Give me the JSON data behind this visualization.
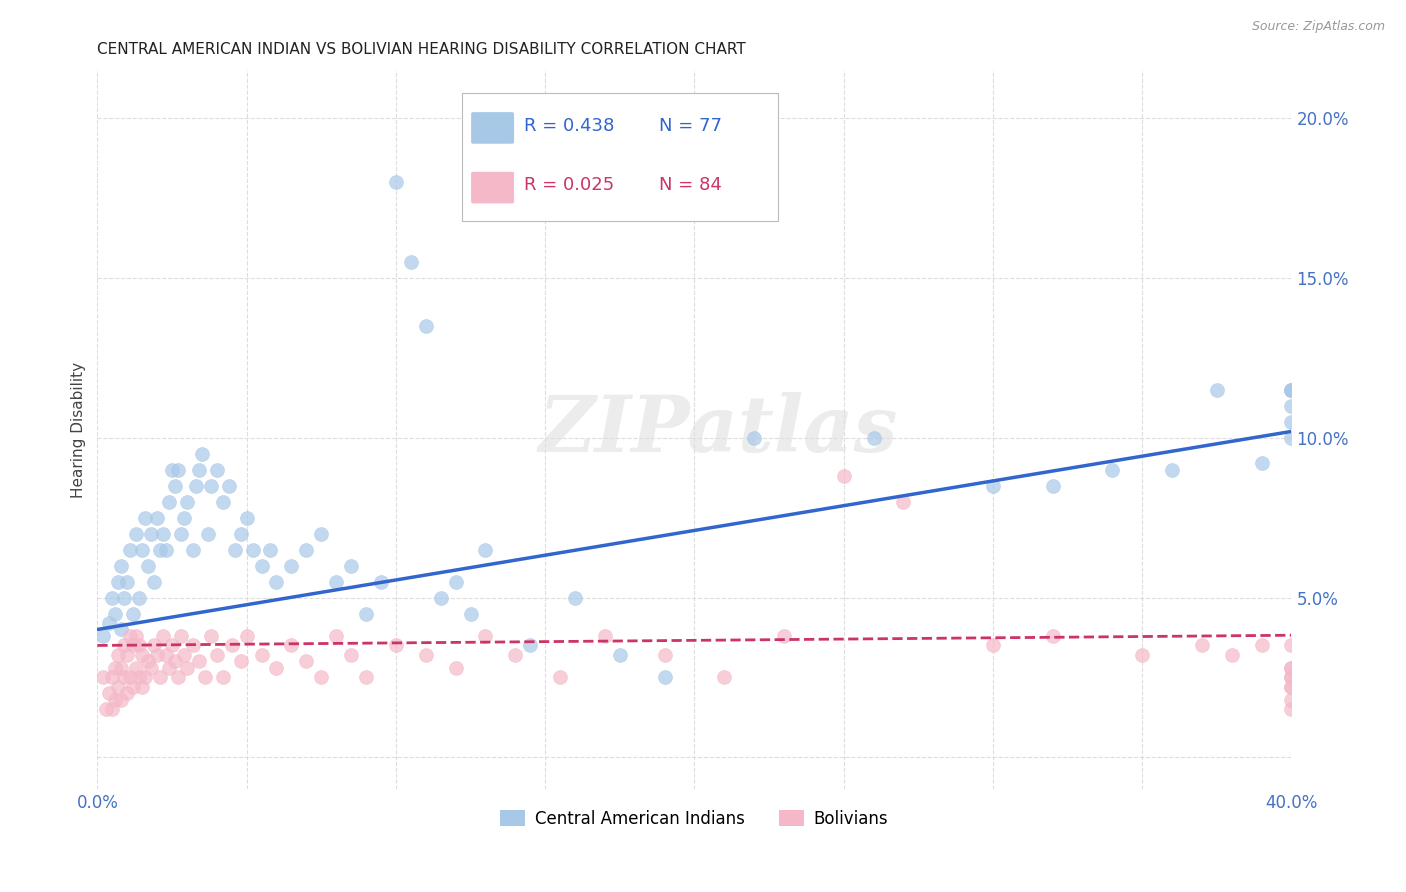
{
  "title": "CENTRAL AMERICAN INDIAN VS BOLIVIAN HEARING DISABILITY CORRELATION CHART",
  "source": "Source: ZipAtlas.com",
  "ylabel": "Hearing Disability",
  "xlim": [
    0.0,
    0.4
  ],
  "ylim": [
    -0.01,
    0.215
  ],
  "xticks": [
    0.0,
    0.05,
    0.1,
    0.15,
    0.2,
    0.25,
    0.3,
    0.35,
    0.4
  ],
  "xtick_labels": [
    "0.0%",
    "",
    "",
    "",
    "",
    "",
    "",
    "",
    "40.0%"
  ],
  "yticks": [
    0.0,
    0.05,
    0.1,
    0.15,
    0.2
  ],
  "ytick_labels": [
    "",
    "5.0%",
    "10.0%",
    "15.0%",
    "20.0%"
  ],
  "legend_blue_r": "R = 0.438",
  "legend_blue_n": "N = 77",
  "legend_pink_r": "R = 0.025",
  "legend_pink_n": "N = 84",
  "legend_label_blue": "Central American Indians",
  "legend_label_pink": "Bolivians",
  "blue_color": "#a8c8e8",
  "pink_color": "#f4b8c8",
  "trendline_blue_color": "#3366cc",
  "trendline_pink_color": "#cc3366",
  "axis_color": "#4472C4",
  "watermark": "ZIPatlas",
  "blue_x": [
    0.002,
    0.004,
    0.005,
    0.006,
    0.007,
    0.008,
    0.008,
    0.009,
    0.01,
    0.011,
    0.012,
    0.013,
    0.014,
    0.015,
    0.016,
    0.017,
    0.018,
    0.019,
    0.02,
    0.021,
    0.022,
    0.023,
    0.024,
    0.025,
    0.026,
    0.027,
    0.028,
    0.029,
    0.03,
    0.032,
    0.033,
    0.034,
    0.035,
    0.037,
    0.038,
    0.04,
    0.042,
    0.044,
    0.046,
    0.048,
    0.05,
    0.052,
    0.055,
    0.058,
    0.06,
    0.065,
    0.07,
    0.075,
    0.08,
    0.085,
    0.09,
    0.095,
    0.1,
    0.105,
    0.11,
    0.115,
    0.12,
    0.125,
    0.13,
    0.145,
    0.16,
    0.175,
    0.19,
    0.22,
    0.26,
    0.3,
    0.32,
    0.34,
    0.36,
    0.375,
    0.39,
    0.4,
    0.4,
    0.4,
    0.4,
    0.4,
    0.4
  ],
  "blue_y": [
    0.038,
    0.042,
    0.05,
    0.045,
    0.055,
    0.04,
    0.06,
    0.05,
    0.055,
    0.065,
    0.045,
    0.07,
    0.05,
    0.065,
    0.075,
    0.06,
    0.07,
    0.055,
    0.075,
    0.065,
    0.07,
    0.065,
    0.08,
    0.09,
    0.085,
    0.09,
    0.07,
    0.075,
    0.08,
    0.065,
    0.085,
    0.09,
    0.095,
    0.07,
    0.085,
    0.09,
    0.08,
    0.085,
    0.065,
    0.07,
    0.075,
    0.065,
    0.06,
    0.065,
    0.055,
    0.06,
    0.065,
    0.07,
    0.055,
    0.06,
    0.045,
    0.055,
    0.18,
    0.155,
    0.135,
    0.05,
    0.055,
    0.045,
    0.065,
    0.035,
    0.05,
    0.032,
    0.025,
    0.1,
    0.1,
    0.085,
    0.085,
    0.09,
    0.09,
    0.115,
    0.092,
    0.115,
    0.105,
    0.1,
    0.115,
    0.11,
    0.115
  ],
  "pink_x": [
    0.002,
    0.003,
    0.004,
    0.005,
    0.005,
    0.006,
    0.006,
    0.007,
    0.007,
    0.008,
    0.008,
    0.009,
    0.009,
    0.01,
    0.01,
    0.011,
    0.011,
    0.012,
    0.012,
    0.013,
    0.013,
    0.014,
    0.014,
    0.015,
    0.015,
    0.016,
    0.017,
    0.018,
    0.019,
    0.02,
    0.021,
    0.022,
    0.023,
    0.024,
    0.025,
    0.026,
    0.027,
    0.028,
    0.029,
    0.03,
    0.032,
    0.034,
    0.036,
    0.038,
    0.04,
    0.042,
    0.045,
    0.048,
    0.05,
    0.055,
    0.06,
    0.065,
    0.07,
    0.075,
    0.08,
    0.085,
    0.09,
    0.1,
    0.11,
    0.12,
    0.13,
    0.14,
    0.155,
    0.17,
    0.19,
    0.21,
    0.23,
    0.25,
    0.27,
    0.3,
    0.32,
    0.35,
    0.37,
    0.38,
    0.39,
    0.4,
    0.4,
    0.4,
    0.4,
    0.4,
    0.4,
    0.4,
    0.4,
    0.4
  ],
  "pink_y": [
    0.025,
    0.015,
    0.02,
    0.015,
    0.025,
    0.018,
    0.028,
    0.022,
    0.032,
    0.018,
    0.028,
    0.025,
    0.035,
    0.02,
    0.032,
    0.025,
    0.038,
    0.022,
    0.035,
    0.028,
    0.038,
    0.025,
    0.035,
    0.022,
    0.032,
    0.025,
    0.03,
    0.028,
    0.035,
    0.032,
    0.025,
    0.038,
    0.032,
    0.028,
    0.035,
    0.03,
    0.025,
    0.038,
    0.032,
    0.028,
    0.035,
    0.03,
    0.025,
    0.038,
    0.032,
    0.025,
    0.035,
    0.03,
    0.038,
    0.032,
    0.028,
    0.035,
    0.03,
    0.025,
    0.038,
    0.032,
    0.025,
    0.035,
    0.032,
    0.028,
    0.038,
    0.032,
    0.025,
    0.038,
    0.032,
    0.025,
    0.038,
    0.088,
    0.08,
    0.035,
    0.038,
    0.032,
    0.035,
    0.032,
    0.035,
    0.025,
    0.015,
    0.022,
    0.028,
    0.018,
    0.025,
    0.035,
    0.028,
    0.022
  ]
}
